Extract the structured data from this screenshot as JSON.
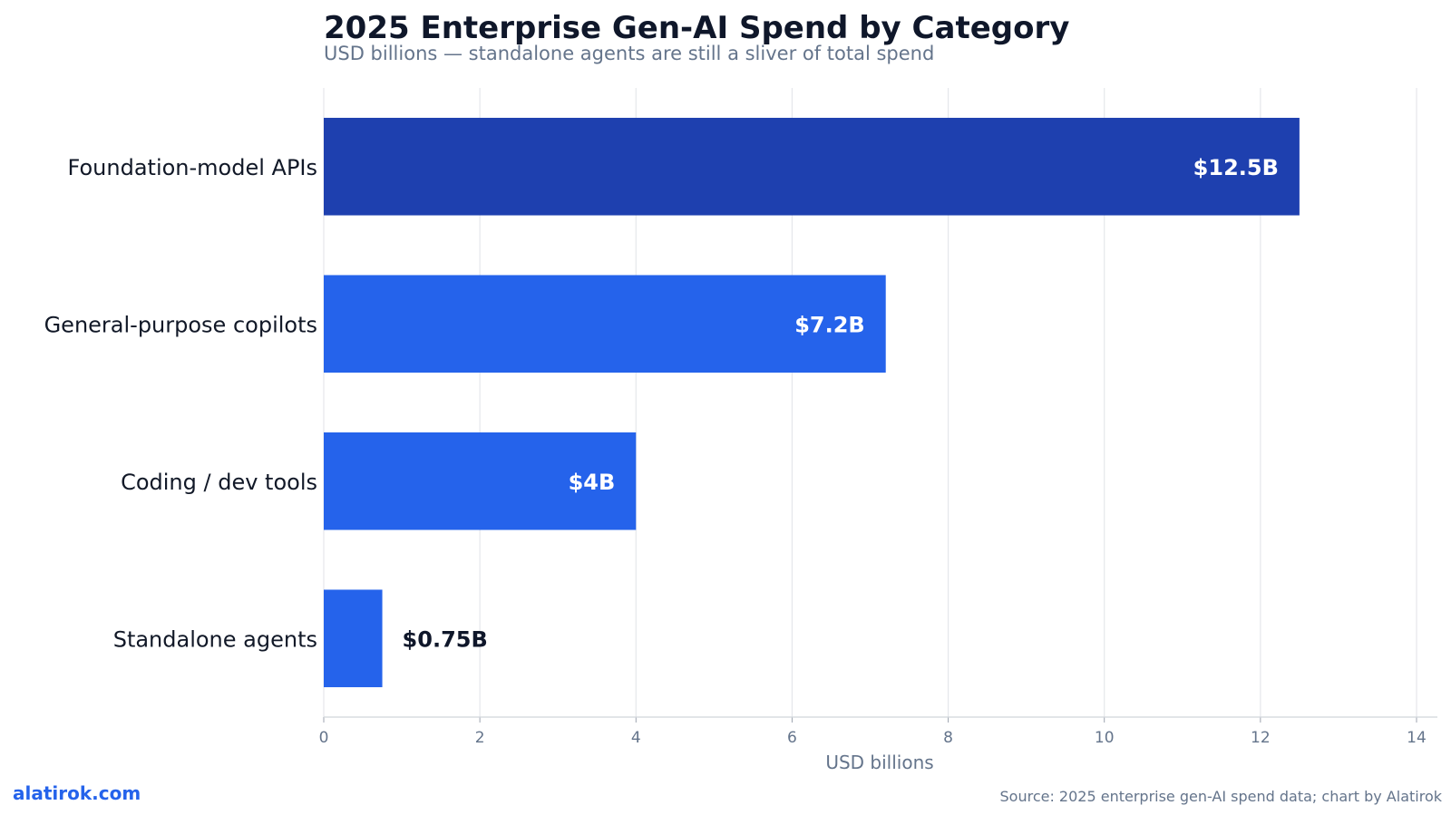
{
  "chart_data": {
    "type": "bar",
    "orientation": "horizontal",
    "title": "2025 Enterprise Gen-AI Spend by Category",
    "subtitle": "USD billions — standalone agents are still a sliver of total spend",
    "categories": [
      "Foundation-model APIs",
      "General-purpose copilots",
      "Coding / dev tools",
      "Standalone agents"
    ],
    "values": [
      12.5,
      7.2,
      4,
      0.75
    ],
    "data_labels": [
      "$12.5B",
      "$7.2B",
      "$4B",
      "$0.75B"
    ],
    "xlabel": "USD billions",
    "ylabel": "",
    "xlim": [
      0,
      14
    ],
    "xticks": [
      0,
      2,
      4,
      6,
      8,
      10,
      12,
      14
    ],
    "grid": "vertical",
    "colors": {
      "highlight": "#1e40af",
      "bar": "#2563eb",
      "label_inside": "#ffffff",
      "label_outside": "#0f172a"
    }
  },
  "footer": {
    "brand": "alatirok.com",
    "source": "Source: 2025 enterprise gen-AI spend data; chart by Alatirok"
  }
}
